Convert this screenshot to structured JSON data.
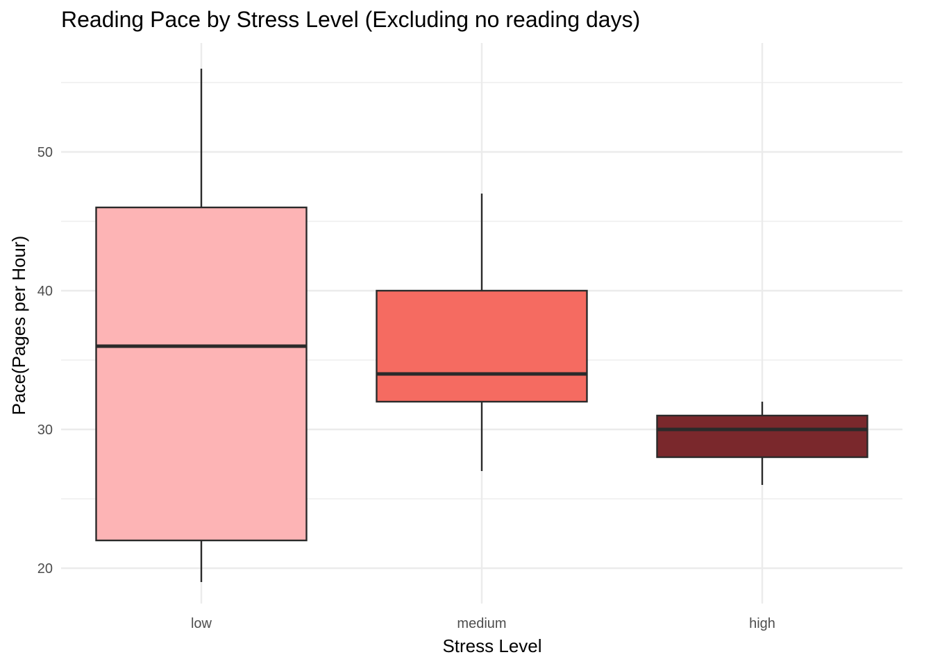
{
  "chart_data": {
    "type": "boxplot",
    "title": "Reading Pace by Stress Level (Excluding no reading days)",
    "xlabel": "Stress Level",
    "ylabel": "Pace(Pages per Hour)",
    "ylim": [
      17,
      58
    ],
    "y_ticks": [
      20,
      30,
      40,
      50
    ],
    "y_minor_ticks": [
      25,
      35,
      45,
      55
    ],
    "grid": true,
    "legend": "none",
    "categories": [
      "low",
      "medium",
      "high"
    ],
    "boxes": [
      {
        "category": "low",
        "whisker_low": 19,
        "q1": 22,
        "median": 36,
        "q3": 46,
        "whisker_high": 56,
        "color": "#FDB4B5"
      },
      {
        "category": "medium",
        "whisker_low": 27,
        "q1": 32,
        "median": 34,
        "q3": 40,
        "whisker_high": 47,
        "color": "#F56B61"
      },
      {
        "category": "high",
        "whisker_low": 26,
        "q1": 28,
        "median": 30,
        "q3": 31,
        "whisker_high": 32,
        "color": "#7A282C"
      }
    ]
  }
}
